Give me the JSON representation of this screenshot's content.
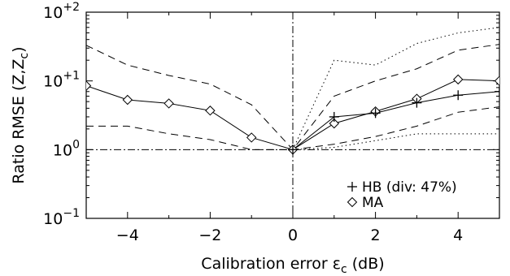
{
  "chart_data": {
    "type": "line",
    "xlabel": "Calibration error ε",
    "xlabel_sub": "c",
    "xlabel_unit": " (dB)",
    "ylabel_parts": [
      "Ratio RMSE (Z,Z",
      "c",
      ")"
    ],
    "xlim": [
      -5,
      5
    ],
    "ylim_log10": [
      -1,
      2
    ],
    "y_scale": "log",
    "x_ticks": [
      {
        "value": -4,
        "label": "−4"
      },
      {
        "value": -2,
        "label": "−2"
      },
      {
        "value": 0,
        "label": "0"
      },
      {
        "value": 2,
        "label": "2"
      },
      {
        "value": 4,
        "label": "4"
      }
    ],
    "y_ticks": [
      {
        "exp": 2,
        "base": "10",
        "sup": "+2"
      },
      {
        "exp": 1,
        "base": "10",
        "sup": "+1"
      },
      {
        "exp": 0,
        "base": "10",
        "sup": "0"
      },
      {
        "exp": -1,
        "base": "10",
        "sup": "−1"
      }
    ],
    "reference_lines": {
      "vertical_x": 0,
      "horizontal_y": 1,
      "style": "dash-dot"
    },
    "legend": {
      "position": "bottom-right",
      "entries": [
        {
          "marker": "plus",
          "label": "HB (div: 47%)"
        },
        {
          "marker": "diamond",
          "label": "MA"
        }
      ]
    },
    "x": [
      -5,
      -4,
      -3,
      -2,
      -1,
      0,
      1,
      2,
      3,
      4,
      5
    ],
    "series": [
      {
        "key": "ma",
        "marker": "diamond",
        "style": "solid",
        "values": [
          8.5,
          5.3,
          4.7,
          3.7,
          1.5,
          1.0,
          2.4,
          3.6,
          5.5,
          10.5,
          10.0
        ]
      },
      {
        "key": "ma_upper",
        "style": "dashed",
        "values": [
          33,
          17,
          12,
          9,
          4.5,
          1.0,
          6,
          10,
          15,
          28,
          34
        ]
      },
      {
        "key": "ma_lower",
        "style": "dashed",
        "values": [
          2.2,
          2.2,
          1.7,
          1.4,
          1.0,
          1.0,
          1.2,
          1.55,
          2.2,
          3.5,
          4.2
        ]
      },
      {
        "key": "hb",
        "marker": "plus",
        "style": "solid",
        "values": [
          null,
          null,
          null,
          null,
          null,
          1.0,
          3.0,
          3.4,
          4.8,
          6.2,
          7.0
        ]
      },
      {
        "key": "hb_upper",
        "style": "dotted",
        "values": [
          null,
          null,
          null,
          null,
          null,
          1.0,
          20,
          17,
          35,
          50,
          60
        ]
      },
      {
        "key": "hb_lower",
        "style": "dotted",
        "values": [
          null,
          null,
          null,
          null,
          null,
          1.0,
          1.08,
          1.35,
          1.7,
          1.7,
          1.7
        ]
      }
    ]
  }
}
